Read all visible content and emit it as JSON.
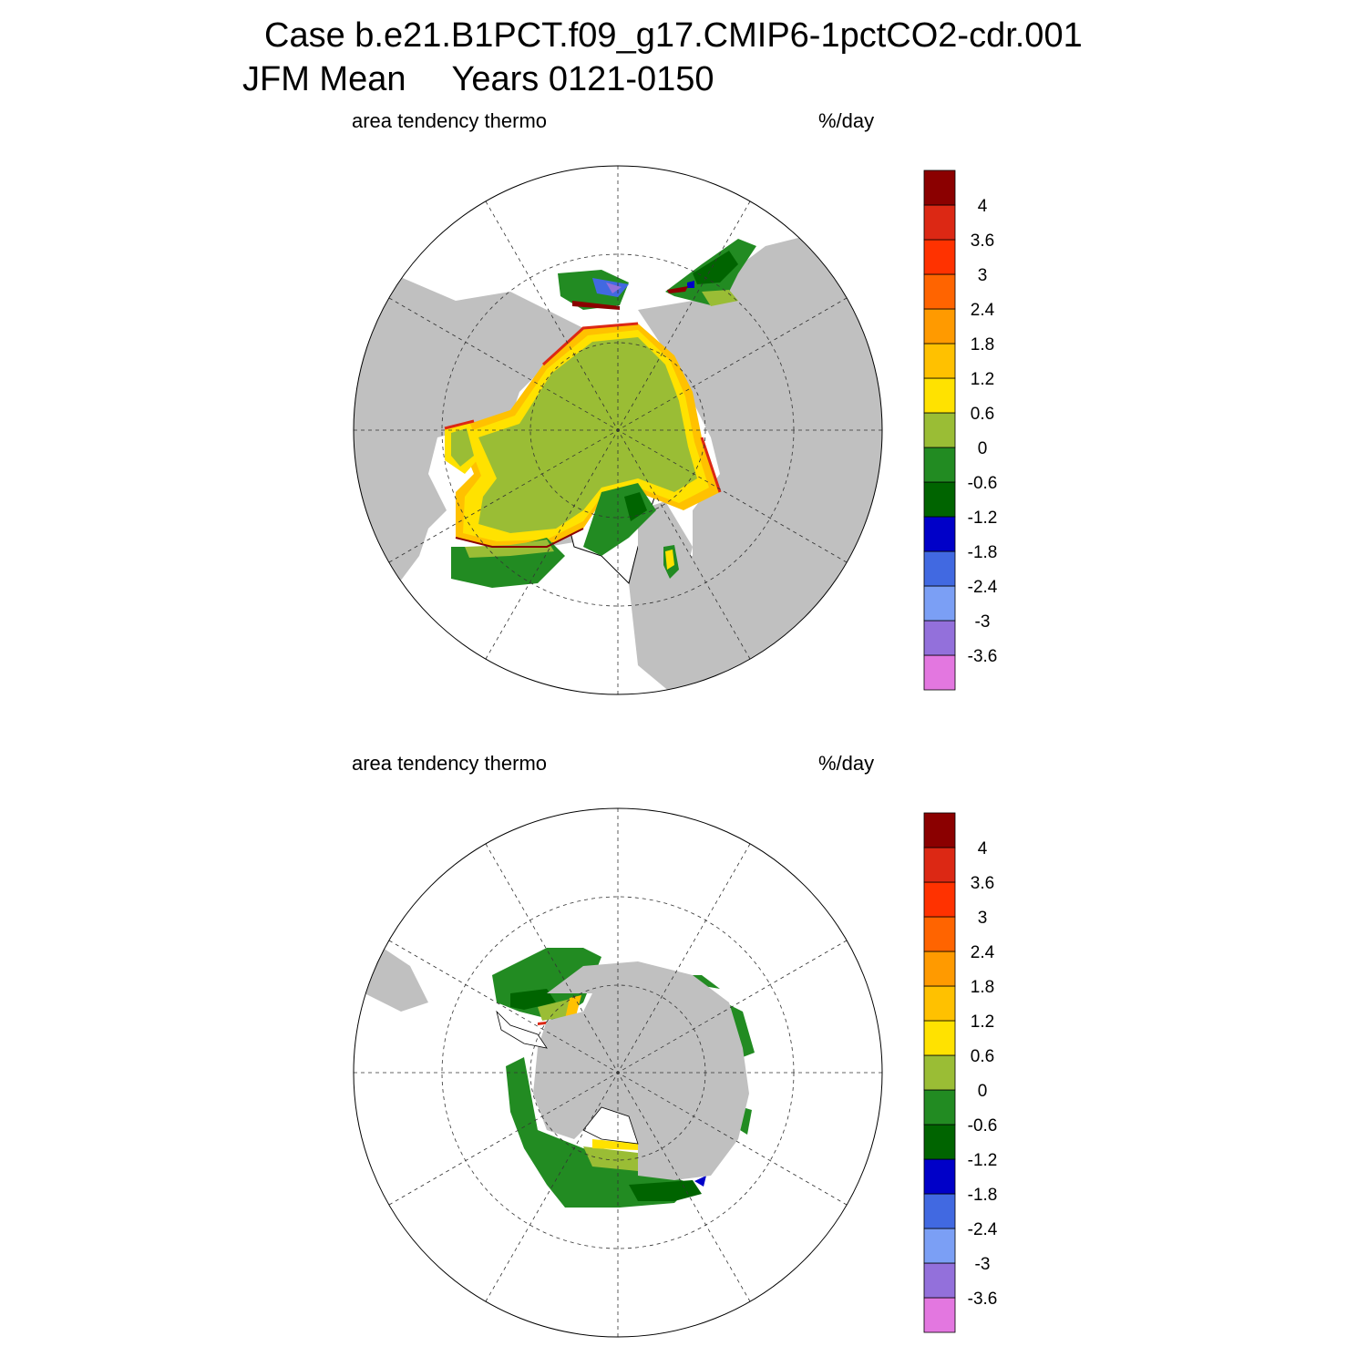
{
  "title": {
    "line1": "Case b.e21.B1PCT.f09_g17.CMIP6-1pctCO2-cdr.001",
    "season": "JFM Mean",
    "years": "Years 0121-0150"
  },
  "panels": [
    {
      "hemisphere": "north",
      "variable": "area tendency thermo",
      "units": "%/day"
    },
    {
      "hemisphere": "south",
      "variable": "area tendency thermo",
      "units": "%/day"
    }
  ],
  "colorbar": {
    "colors": [
      "#e377e0",
      "#9370db",
      "#7b9ff5",
      "#4169e1",
      "#0000c8",
      "#006400",
      "#228b22",
      "#9abd35",
      "#ffe200",
      "#ffc100",
      "#ff9a00",
      "#ff6400",
      "#ff3200",
      "#dc2814",
      "#8b0000"
    ],
    "labels": [
      "-3.6",
      "-3",
      "-2.4",
      "-1.8",
      "-1.2",
      "-0.6",
      "0",
      "0.6",
      "1.2",
      "1.8",
      "2.4",
      "3",
      "3.6",
      "4"
    ]
  },
  "map_colors": {
    "land": "#c0c0c0",
    "ocean": "#ffffff",
    "grid": "#333333"
  }
}
